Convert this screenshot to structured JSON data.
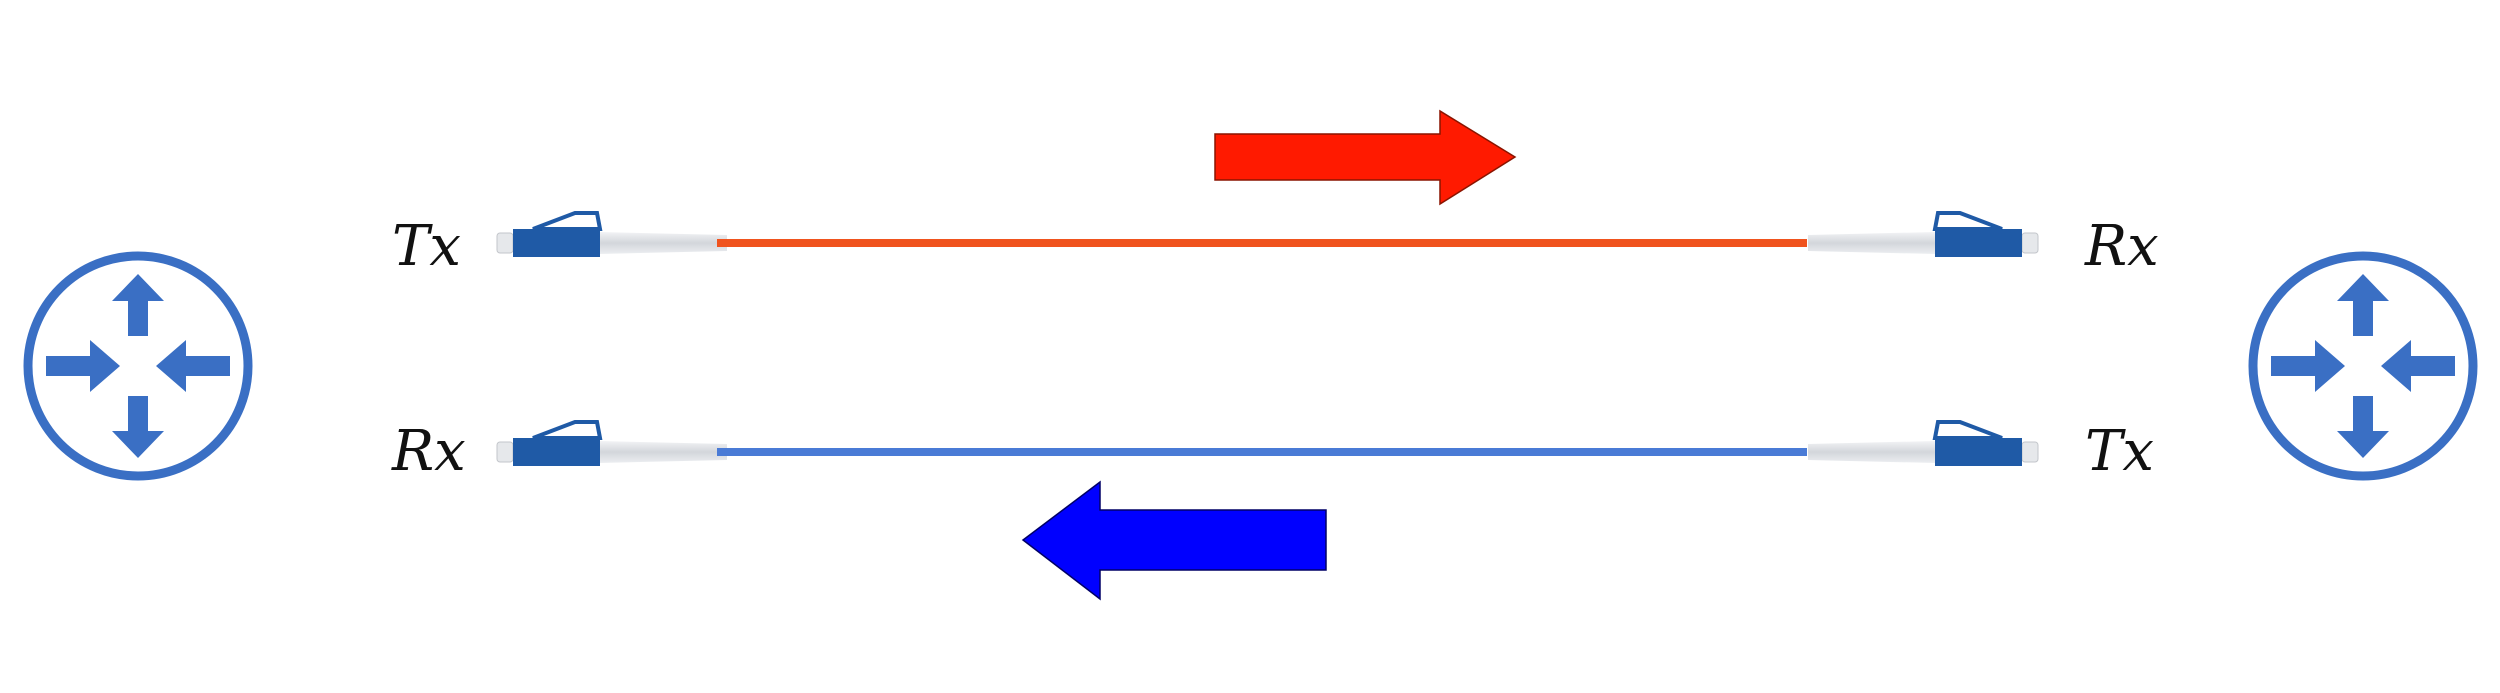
{
  "left_router": {
    "icon": "router-icon"
  },
  "right_router": {
    "icon": "router-icon"
  },
  "top_link": {
    "left_label": "Tx",
    "right_label": "Rx",
    "cable_color": "#f0531e",
    "direction": "left-to-right",
    "arrow_color": "#ff1a00"
  },
  "bottom_link": {
    "left_label": "Rx",
    "right_label": "Tx",
    "cable_color": "#4a7bd6",
    "direction": "right-to-left",
    "arrow_color": "#0000ff"
  },
  "colors": {
    "router_blue": "#3a6fc4",
    "connector_blue": "#1f5aa6",
    "connector_boot": "#d6d9de"
  }
}
